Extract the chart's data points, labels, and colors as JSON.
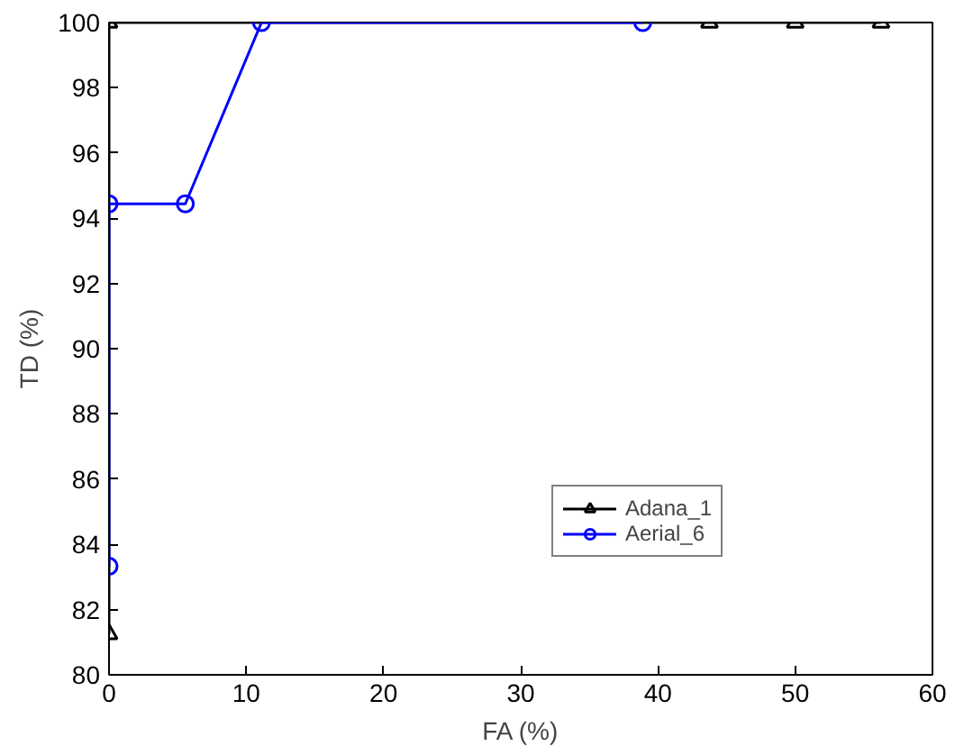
{
  "chart_data": {
    "type": "line",
    "xlabel": "FA (%)",
    "ylabel": "TD (%)",
    "xlim": [
      0,
      60
    ],
    "ylim": [
      80,
      100
    ],
    "xticks": [
      0,
      10,
      20,
      30,
      40,
      50,
      60
    ],
    "yticks": [
      80,
      82,
      84,
      86,
      88,
      90,
      92,
      94,
      96,
      98,
      100
    ],
    "grid": false,
    "legend": "right",
    "line_style": "solid",
    "series": [
      {
        "name": "Adana_1",
        "color": "#000000",
        "marker": "triangle",
        "x": [
          0,
          0,
          43.75,
          50,
          56.25
        ],
        "values": [
          81.25,
          100,
          100,
          100,
          100
        ]
      },
      {
        "name": "Aerial_6",
        "color": "#0000ff",
        "marker": "circle",
        "x": [
          0,
          0,
          5.56,
          11.11,
          38.89
        ],
        "values": [
          83.33,
          94.44,
          94.44,
          100,
          100
        ]
      }
    ]
  }
}
